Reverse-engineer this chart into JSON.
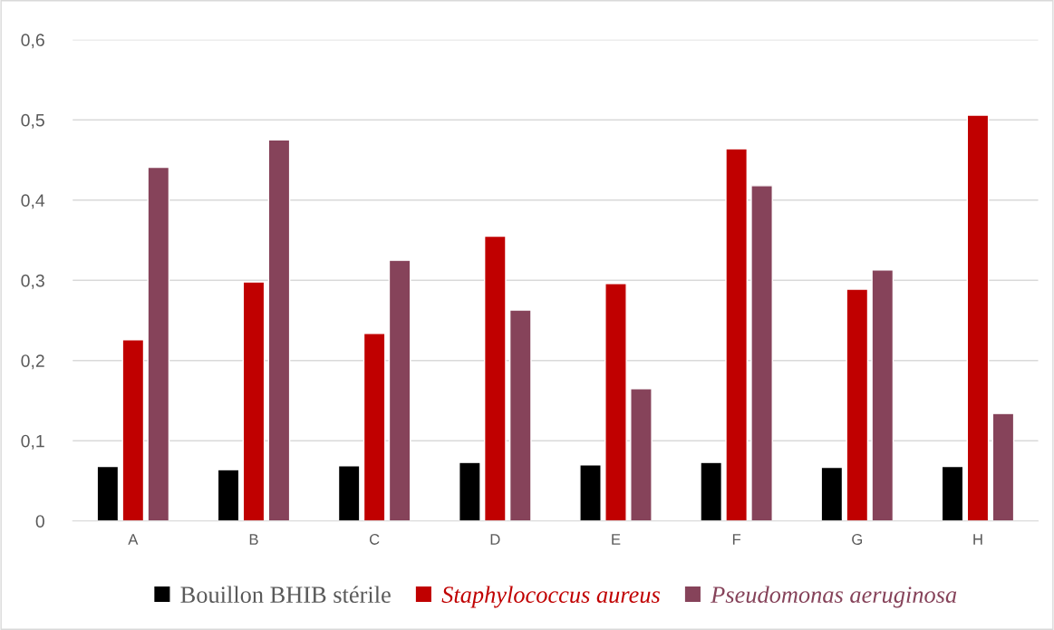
{
  "chart_data": {
    "type": "bar",
    "categories": [
      "A",
      "B",
      "C",
      "D",
      "E",
      "F",
      "G",
      "H"
    ],
    "series": [
      {
        "name": "Bouillon BHIB stérile",
        "color": "#000000",
        "values": [
          0.068,
          0.064,
          0.069,
          0.073,
          0.07,
          0.073,
          0.067,
          0.068
        ]
      },
      {
        "name": "Staphylococcus aureus",
        "color": "#c00000",
        "values": [
          0.226,
          0.298,
          0.234,
          0.355,
          0.296,
          0.464,
          0.289,
          0.506
        ]
      },
      {
        "name": "Pseudomonas aeruginosa",
        "color": "#86435a",
        "values": [
          0.441,
          0.475,
          0.325,
          0.263,
          0.165,
          0.418,
          0.313,
          0.134
        ]
      }
    ],
    "ylim": [
      0,
      0.6
    ],
    "yticks": [
      0,
      {
        "value": 0.1,
        "label": "0,1"
      },
      {
        "value": 0.2,
        "label": "0,2"
      },
      {
        "value": 0.3,
        "label": "0,3"
      },
      {
        "value": 0.4,
        "label": "0,4"
      },
      {
        "value": 0.5,
        "label": "0,5"
      },
      {
        "value": 0.6,
        "label": "0,6"
      }
    ],
    "grid": "y",
    "legend": "bottom"
  }
}
